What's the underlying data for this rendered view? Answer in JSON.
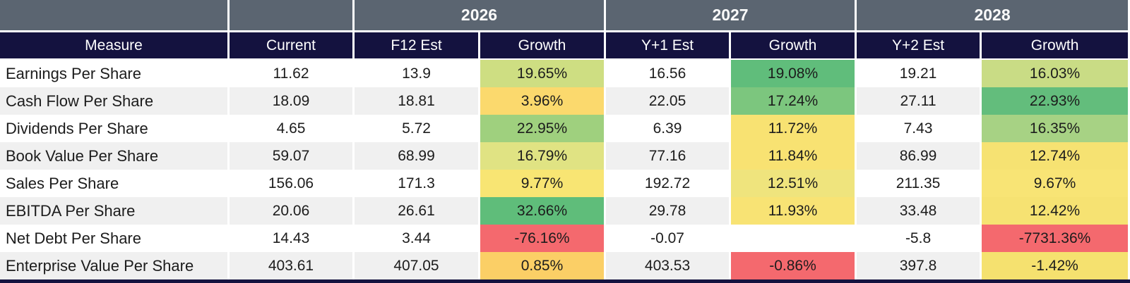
{
  "table": {
    "years": [
      "2026",
      "2027",
      "2028"
    ],
    "columns": [
      "Measure",
      "Current",
      "F12 Est",
      "Growth",
      "Y+1 Est",
      "Growth",
      "Y+2 Est",
      "Growth"
    ],
    "rows": [
      {
        "cells": [
          {
            "text": "Earnings Per Share"
          },
          {
            "text": "11.62"
          },
          {
            "text": "13.9"
          },
          {
            "text": "19.65%",
            "bg": "#cede82"
          },
          {
            "text": "16.56"
          },
          {
            "text": "19.08%",
            "bg": "#60bd7b"
          },
          {
            "text": "19.21"
          },
          {
            "text": "16.03%",
            "bg": "#c9dc85"
          }
        ]
      },
      {
        "cells": [
          {
            "text": "Cash Flow Per Share"
          },
          {
            "text": "18.09"
          },
          {
            "text": "18.81"
          },
          {
            "text": "3.96%",
            "bg": "#fbd96d"
          },
          {
            "text": "22.05"
          },
          {
            "text": "17.24%",
            "bg": "#7cc67e"
          },
          {
            "text": "27.11"
          },
          {
            "text": "22.93%",
            "bg": "#63bd7c"
          }
        ]
      },
      {
        "cells": [
          {
            "text": "Dividends Per Share"
          },
          {
            "text": "4.65"
          },
          {
            "text": "5.72"
          },
          {
            "text": "22.95%",
            "bg": "#9fd07e"
          },
          {
            "text": "6.39"
          },
          {
            "text": "11.72%",
            "bg": "#f8e272"
          },
          {
            "text": "7.43"
          },
          {
            "text": "16.35%",
            "bg": "#a7d284"
          }
        ]
      },
      {
        "cells": [
          {
            "text": "Book Value Per Share"
          },
          {
            "text": "59.07"
          },
          {
            "text": "68.99"
          },
          {
            "text": "16.79%",
            "bg": "#e0e383"
          },
          {
            "text": "77.16"
          },
          {
            "text": "11.84%",
            "bg": "#f8e272"
          },
          {
            "text": "86.99"
          },
          {
            "text": "12.74%",
            "bg": "#f6e272"
          }
        ]
      },
      {
        "cells": [
          {
            "text": "Sales Per Share"
          },
          {
            "text": "156.06"
          },
          {
            "text": "171.3"
          },
          {
            "text": "9.77%",
            "bg": "#f8e573"
          },
          {
            "text": "192.72"
          },
          {
            "text": "12.51%",
            "bg": "#efe47d"
          },
          {
            "text": "211.35"
          },
          {
            "text": "9.67%",
            "bg": "#f8e475"
          }
        ]
      },
      {
        "cells": [
          {
            "text": "EBITDA Per Share"
          },
          {
            "text": "20.06"
          },
          {
            "text": "26.61"
          },
          {
            "text": "32.66%",
            "bg": "#5fbd7a"
          },
          {
            "text": "29.78"
          },
          {
            "text": "11.93%",
            "bg": "#f8e374"
          },
          {
            "text": "33.48"
          },
          {
            "text": "12.42%",
            "bg": "#f6e272"
          }
        ]
      },
      {
        "cells": [
          {
            "text": "Net Debt Per Share"
          },
          {
            "text": "14.43"
          },
          {
            "text": "3.44"
          },
          {
            "text": "-76.16%",
            "bg": "#f4696e"
          },
          {
            "text": "-0.07"
          },
          {
            "text": ""
          },
          {
            "text": "-5.8"
          },
          {
            "text": "-7731.36%",
            "bg": "#f4696e"
          }
        ]
      },
      {
        "cells": [
          {
            "text": "Enterprise Value Per Share"
          },
          {
            "text": "403.61"
          },
          {
            "text": "407.05"
          },
          {
            "text": "0.85%",
            "bg": "#fbcf66"
          },
          {
            "text": "403.53"
          },
          {
            "text": "-0.86%",
            "bg": "#f4696e"
          },
          {
            "text": "397.8"
          },
          {
            "text": "-1.42%",
            "bg": "#f5e16f"
          }
        ]
      }
    ],
    "colors": {
      "band_bg": "#5b6571",
      "header_bg": "#14123f",
      "header_text": "#ffffff",
      "row_bg": "#ffffff",
      "row_alt_bg": "#f0f0f0",
      "text": "#1c1c1c",
      "separator": "#ffffff",
      "heat_green": "#5fbd7a",
      "heat_yellow": "#f8e272",
      "heat_orange": "#fbcf66",
      "heat_red": "#f4696e"
    }
  }
}
